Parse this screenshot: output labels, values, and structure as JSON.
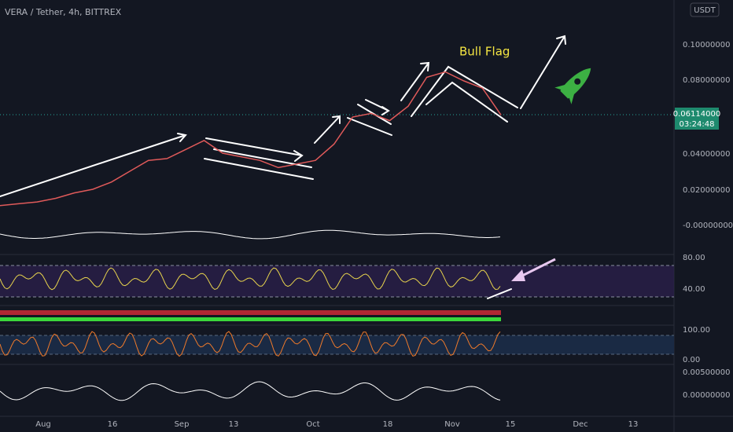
{
  "header": {
    "title": "VERA / Tether, 4h, BITTREX",
    "currency": "USDT"
  },
  "price": {
    "values": [
      0.011,
      0.012,
      0.013,
      0.015,
      0.018,
      0.02,
      0.024,
      0.03,
      0.036,
      0.037,
      0.042,
      0.047,
      0.04,
      0.038,
      0.036,
      0.032,
      0.034,
      0.036,
      0.045,
      0.06,
      0.062,
      0.058,
      0.066,
      0.082,
      0.085,
      0.08,
      0.076,
      0.06114
    ],
    "last": "0.06114000",
    "countdown": "03:24:48"
  },
  "price_axis": {
    "labels": [
      "0.10000000",
      "0.08000000",
      "0.04000000",
      "0.02000000",
      "-0.00000000"
    ]
  },
  "rsi_axis": {
    "labels": [
      "80.00",
      "40.00"
    ]
  },
  "stoch_axis": {
    "labels": [
      "100.00",
      "0.00"
    ]
  },
  "macd_axis": {
    "labels": [
      "0.00500000",
      "0.00000000"
    ]
  },
  "time_axis": {
    "labels": [
      "Aug",
      "16",
      "Sep",
      "13",
      "Oct",
      "18",
      "Nov",
      "15",
      "Dec",
      "13"
    ]
  },
  "annotation": "Bull Flag"
}
